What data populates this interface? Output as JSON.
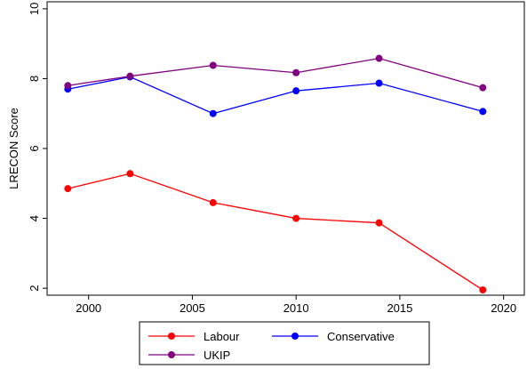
{
  "chart_data": {
    "type": "line",
    "title": "",
    "xlabel": "",
    "ylabel": "LRECON Score",
    "xlim": [
      1998,
      2021
    ],
    "ylim": [
      1.8,
      10.2
    ],
    "xticks": [
      2000,
      2005,
      2010,
      2015,
      2020
    ],
    "yticks": [
      2,
      4,
      6,
      8,
      10
    ],
    "grid": false,
    "legend_position": "bottom",
    "x": [
      1999,
      2002,
      2006,
      2010,
      2014,
      2019
    ],
    "series": [
      {
        "name": "Labour",
        "color": "#ff0000",
        "values": [
          4.85,
          5.28,
          4.45,
          4.0,
          3.87,
          1.95
        ]
      },
      {
        "name": "Conservative",
        "color": "#0000ff",
        "values": [
          7.7,
          8.05,
          7.0,
          7.65,
          7.87,
          7.06
        ]
      },
      {
        "name": "UKIP",
        "color": "#800080",
        "values": [
          7.8,
          8.07,
          8.38,
          8.17,
          8.58,
          7.74
        ]
      }
    ]
  }
}
